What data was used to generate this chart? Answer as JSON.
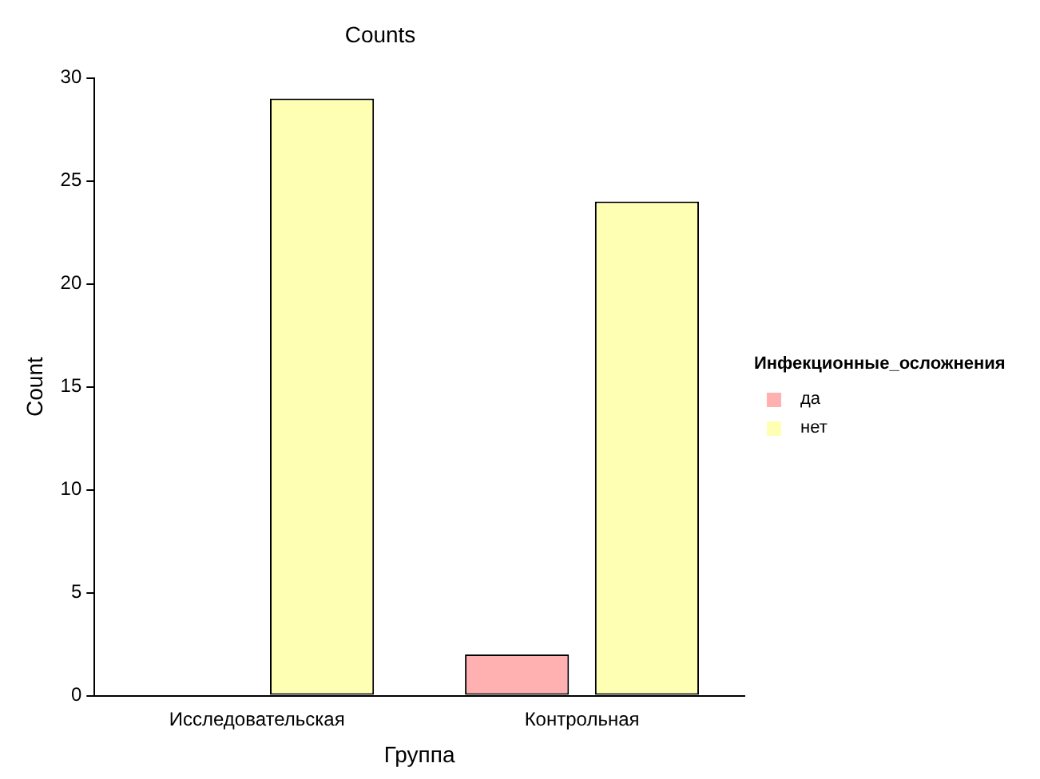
{
  "chart_data": {
    "type": "bar",
    "title": "Counts",
    "xlabel": "Группа",
    "ylabel": "Count",
    "legend_title": "Инфекционные_осложнения",
    "categories": [
      "Исследовательская",
      "Контрольная"
    ],
    "series": [
      {
        "name": "да",
        "color": "#ffb0b0",
        "values": [
          0,
          2
        ]
      },
      {
        "name": "нет",
        "color": "#ffffb3",
        "values": [
          29,
          24
        ]
      }
    ],
    "ylim": [
      0,
      30
    ],
    "yticks": [
      0,
      5,
      10,
      15,
      20,
      25,
      30
    ],
    "grid": false,
    "legend": "right"
  }
}
